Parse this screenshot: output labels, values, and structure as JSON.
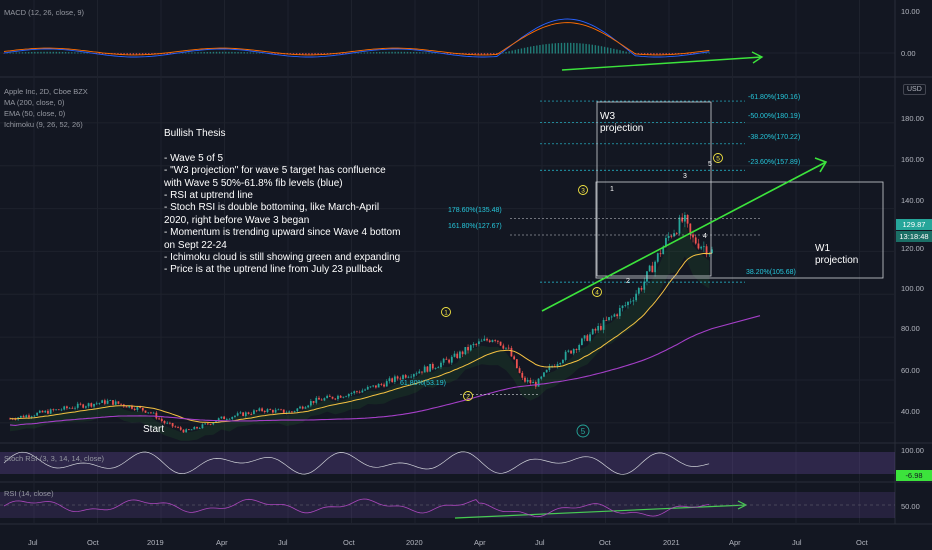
{
  "chart_data": {
    "type": "candlestick",
    "symbol": "Apple Inc, 2D, Cboe BZX",
    "currency_badge": "USD",
    "indicators": [
      "MA (200, close, 0)",
      "EMA (50, close, 0)",
      "Ichimoku (9, 26, 52, 26)"
    ],
    "macd_label": "MACD (12, 26, close, 9)",
    "stoch_label": "Stoch RSI (3, 3, 14, 14, close)",
    "rsi_label": "RSI (14, close)",
    "x_ticks": [
      "Jul",
      "Oct",
      "2019",
      "Apr",
      "Jul",
      "Oct",
      "2020",
      "Apr",
      "Jul",
      "Oct",
      "2021",
      "Apr",
      "Jul",
      "Oct"
    ],
    "price_ticks": [
      "180.00",
      "160.00",
      "140.00",
      "120.00",
      "100.00",
      "80.00",
      "60.00",
      "40.00"
    ],
    "price_range": [
      32,
      200
    ],
    "macd_ticks": [
      "10.00",
      "0.00"
    ],
    "stoch_ticks": [
      "100.00"
    ],
    "rsi_ticks": [
      "50.00"
    ],
    "last_price": "129.87",
    "countdown": "13:18:48",
    "stoch_value": "-6.98",
    "price_path": [
      [
        0,
        42
      ],
      [
        0.05,
        45
      ],
      [
        0.1,
        48
      ],
      [
        0.14,
        50
      ],
      [
        0.18,
        47
      ],
      [
        0.2,
        45
      ],
      [
        0.22,
        40
      ],
      [
        0.25,
        36
      ],
      [
        0.27,
        38
      ],
      [
        0.3,
        42
      ],
      [
        0.33,
        44
      ],
      [
        0.36,
        46
      ],
      [
        0.4,
        45
      ],
      [
        0.43,
        50
      ],
      [
        0.46,
        52
      ],
      [
        0.5,
        55
      ],
      [
        0.53,
        58
      ],
      [
        0.56,
        62
      ],
      [
        0.6,
        66
      ],
      [
        0.63,
        70
      ],
      [
        0.66,
        76
      ],
      [
        0.69,
        80
      ],
      [
        0.71,
        74
      ],
      [
        0.73,
        60
      ],
      [
        0.75,
        58
      ],
      [
        0.77,
        66
      ],
      [
        0.8,
        74
      ],
      [
        0.83,
        82
      ],
      [
        0.86,
        90
      ],
      [
        0.88,
        96
      ],
      [
        0.9,
        104
      ],
      [
        0.92,
        116
      ],
      [
        0.94,
        128
      ],
      [
        0.96,
        135
      ],
      [
        0.97,
        126
      ],
      [
        1.0,
        120
      ]
    ],
    "wave_labels": {
      "w1": "1",
      "w2": "2",
      "w3": "3",
      "w4": "4",
      "w5": "5",
      "c1": "1",
      "c2": "2",
      "c3": "3",
      "c4": "4",
      "c5": "5",
      "c_start": "5"
    },
    "fib_levels": [
      {
        "label": "-61.80%(190.16)",
        "value": 190.16
      },
      {
        "label": "-50.00%(180.19)",
        "value": 180.19
      },
      {
        "label": "-38.20%(170.22)",
        "value": 170.22
      },
      {
        "label": "-23.60%(157.89)",
        "value": 157.89
      },
      {
        "label": "38.20%(105.68)",
        "value": 105.68
      }
    ],
    "fib_ext_levels": [
      {
        "label": "178.60%(135.48)",
        "value": 135.48
      },
      {
        "label": "161.80%(127.67)",
        "value": 127.67
      },
      {
        "label": "61.80%(53.19)",
        "value": 53.19
      }
    ]
  },
  "annotations": {
    "start": "Start",
    "w3_projection": "W3\nprojection",
    "w1_projection": "W1\nprojection",
    "thesis": "Bullish Thesis\n\n- Wave 5 of 5\n- \"W3 projection\" for wave 5 target has confluence with Wave 5 50%-61.8% fib levels (blue)\n- RSI at uptrend line\n- Stoch RSI is double bottoming, like March-April 2020, right before Wave 3 began\n- Momentum is trending upward since Wave 4 bottom on Sept 22-24\n- Ichimoku cloud is still showing green and expanding\n- Price is at the uptrend line from July 23 pullback"
  },
  "colors": {
    "bg": "#131722",
    "up": "#26a69a",
    "down": "#ef5350",
    "ema": "#f5c242",
    "ma200": "#a53fc8",
    "trend": "#3ce33c",
    "fib": "#26c6da",
    "macd": "#2962ff",
    "signal": "#ff6d00"
  }
}
